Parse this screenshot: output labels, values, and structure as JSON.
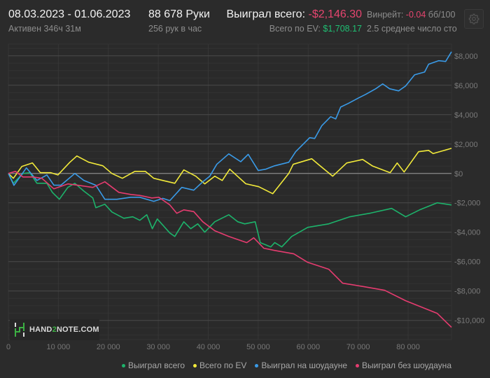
{
  "header": {
    "date_range": "08.03.2023 - 01.06.2023",
    "active_time": "Активен 346ч 31м",
    "hands": "88 678 Руки",
    "hands_per_hour": "256 рук в час",
    "won_total_label": "Выиграл всего:",
    "won_total_value": "-$2,146.30",
    "ev_total_label": "Всего по EV:",
    "ev_total_value": "$1,708.17",
    "winrate_label": "Винрейт:",
    "winrate_value": "-0.04",
    "winrate_unit": "бб/100",
    "avg_tables": "2.5 среднее число сто",
    "settings_icon": "gear-icon"
  },
  "logo": {
    "text_a": "HAND",
    "text_b": "2",
    "text_c": "NOTE.COM"
  },
  "chart_data": {
    "type": "line",
    "xlim": [
      0,
      88678
    ],
    "ylim": [
      -11300,
      8800
    ],
    "x_ticks": [
      0,
      10000,
      20000,
      30000,
      40000,
      50000,
      60000,
      70000,
      80000
    ],
    "x_tick_labels": [
      "0",
      "10 000",
      "20 000",
      "30 000",
      "40 000",
      "50 000",
      "60 000",
      "70 000",
      "80 000"
    ],
    "y_ticks": [
      8000,
      6000,
      4000,
      2000,
      0,
      -2000,
      -4000,
      -6000,
      -8000,
      -10000
    ],
    "y_tick_labels": [
      "$8,000",
      "$6,000",
      "$4,000",
      "$2,000",
      "$0",
      "-$2,000",
      "-$4,000",
      "-$6,000",
      "-$8,000",
      "-$10,000"
    ],
    "grid": true,
    "legend_position": "bottom-right",
    "series": [
      {
        "name": "Выиграл всего",
        "color": "#1db36b",
        "points": [
          [
            0,
            0
          ],
          [
            1000,
            -670
          ],
          [
            2900,
            0
          ],
          [
            4300,
            50
          ],
          [
            5700,
            -670
          ],
          [
            7700,
            -670
          ],
          [
            8800,
            -1290
          ],
          [
            10200,
            -1760
          ],
          [
            11900,
            -950
          ],
          [
            13300,
            -670
          ],
          [
            15100,
            -1200
          ],
          [
            16900,
            -1670
          ],
          [
            17500,
            -2330
          ],
          [
            19300,
            -2100
          ],
          [
            20700,
            -2620
          ],
          [
            23100,
            -3050
          ],
          [
            24900,
            -2950
          ],
          [
            26300,
            -3190
          ],
          [
            27700,
            -2810
          ],
          [
            28800,
            -3760
          ],
          [
            29800,
            -3100
          ],
          [
            32300,
            -4050
          ],
          [
            33300,
            -4290
          ],
          [
            35100,
            -3290
          ],
          [
            36500,
            -3760
          ],
          [
            37900,
            -3430
          ],
          [
            39300,
            -4000
          ],
          [
            41300,
            -3290
          ],
          [
            44100,
            -2810
          ],
          [
            45900,
            -3290
          ],
          [
            47300,
            -3430
          ],
          [
            49400,
            -3290
          ],
          [
            50400,
            -4710
          ],
          [
            52500,
            -5000
          ],
          [
            53300,
            -4710
          ],
          [
            54700,
            -5000
          ],
          [
            56700,
            -4290
          ],
          [
            59900,
            -3670
          ],
          [
            64100,
            -3430
          ],
          [
            68300,
            -2950
          ],
          [
            72500,
            -2700
          ],
          [
            76700,
            -2380
          ],
          [
            79500,
            -2950
          ],
          [
            82300,
            -2480
          ],
          [
            85800,
            -2000
          ],
          [
            88678,
            -2146.3
          ]
        ]
      },
      {
        "name": "Всего по EV",
        "color": "#f2ea3a",
        "points": [
          [
            0,
            0
          ],
          [
            1000,
            -330
          ],
          [
            2700,
            480
          ],
          [
            4800,
            710
          ],
          [
            6400,
            50
          ],
          [
            8500,
            50
          ],
          [
            9900,
            -100
          ],
          [
            12300,
            760
          ],
          [
            13700,
            1190
          ],
          [
            16100,
            760
          ],
          [
            18900,
            520
          ],
          [
            20700,
            0
          ],
          [
            22800,
            -330
          ],
          [
            25300,
            140
          ],
          [
            27400,
            140
          ],
          [
            29100,
            -330
          ],
          [
            30900,
            -480
          ],
          [
            33300,
            -670
          ],
          [
            35100,
            240
          ],
          [
            37500,
            -190
          ],
          [
            39300,
            -710
          ],
          [
            41300,
            -190
          ],
          [
            42800,
            -480
          ],
          [
            44300,
            290
          ],
          [
            47500,
            -700
          ],
          [
            50100,
            -900
          ],
          [
            52900,
            -1380
          ],
          [
            56100,
            0
          ],
          [
            57000,
            620
          ],
          [
            60700,
            1000
          ],
          [
            62100,
            600
          ],
          [
            64900,
            -190
          ],
          [
            67700,
            710
          ],
          [
            70900,
            950
          ],
          [
            72900,
            500
          ],
          [
            76400,
            50
          ],
          [
            77800,
            710
          ],
          [
            79200,
            100
          ],
          [
            82100,
            1480
          ],
          [
            84100,
            1570
          ],
          [
            85000,
            1350
          ],
          [
            88678,
            1708.17
          ]
        ]
      },
      {
        "name": "Выиграл на шоудауне",
        "color": "#3a9be8",
        "points": [
          [
            0,
            0
          ],
          [
            1100,
            -810
          ],
          [
            3600,
            380
          ],
          [
            5700,
            -480
          ],
          [
            7700,
            -100
          ],
          [
            9100,
            -800
          ],
          [
            10500,
            -800
          ],
          [
            13300,
            0
          ],
          [
            15100,
            -480
          ],
          [
            17500,
            -800
          ],
          [
            19300,
            -1760
          ],
          [
            21700,
            -1760
          ],
          [
            24500,
            -1620
          ],
          [
            26300,
            -1620
          ],
          [
            29100,
            -1900
          ],
          [
            30900,
            -1700
          ],
          [
            32300,
            -1850
          ],
          [
            34700,
            -950
          ],
          [
            37100,
            -1140
          ],
          [
            38900,
            -570
          ],
          [
            40300,
            -190
          ],
          [
            41700,
            620
          ],
          [
            44100,
            1330
          ],
          [
            46500,
            800
          ],
          [
            48000,
            1300
          ],
          [
            50000,
            200
          ],
          [
            51500,
            290
          ],
          [
            53300,
            520
          ],
          [
            56100,
            760
          ],
          [
            57500,
            1480
          ],
          [
            60300,
            2430
          ],
          [
            61300,
            2380
          ],
          [
            62700,
            3240
          ],
          [
            64500,
            3860
          ],
          [
            65500,
            3710
          ],
          [
            66500,
            4520
          ],
          [
            68000,
            4760
          ],
          [
            70100,
            5140
          ],
          [
            71500,
            5380
          ],
          [
            73500,
            5760
          ],
          [
            74900,
            6090
          ],
          [
            76300,
            5760
          ],
          [
            78100,
            5620
          ],
          [
            79500,
            5950
          ],
          [
            81300,
            6710
          ],
          [
            83300,
            6900
          ],
          [
            84100,
            7430
          ],
          [
            86100,
            7670
          ],
          [
            87500,
            7620
          ],
          [
            88678,
            8280
          ]
        ]
      },
      {
        "name": "Выиграл без шоудауна",
        "color": "#e63c70",
        "points": [
          [
            0,
            0
          ],
          [
            1400,
            140
          ],
          [
            2900,
            -240
          ],
          [
            4900,
            -240
          ],
          [
            6700,
            -330
          ],
          [
            9100,
            -1050
          ],
          [
            11900,
            -710
          ],
          [
            14100,
            -810
          ],
          [
            16900,
            -950
          ],
          [
            19300,
            -570
          ],
          [
            22100,
            -1290
          ],
          [
            24500,
            -1430
          ],
          [
            26300,
            -1500
          ],
          [
            28700,
            -1670
          ],
          [
            30100,
            -1620
          ],
          [
            32300,
            -2140
          ],
          [
            33700,
            -2710
          ],
          [
            35100,
            -2480
          ],
          [
            37100,
            -2600
          ],
          [
            38900,
            -3290
          ],
          [
            41300,
            -3900
          ],
          [
            44100,
            -4290
          ],
          [
            47700,
            -4710
          ],
          [
            49100,
            -4380
          ],
          [
            51100,
            -5090
          ],
          [
            53300,
            -5240
          ],
          [
            57100,
            -5470
          ],
          [
            59900,
            -6050
          ],
          [
            64100,
            -6520
          ],
          [
            66900,
            -7470
          ],
          [
            71100,
            -7700
          ],
          [
            75300,
            -7950
          ],
          [
            79500,
            -8660
          ],
          [
            82300,
            -9040
          ],
          [
            85800,
            -9520
          ],
          [
            88678,
            -10470
          ]
        ]
      }
    ]
  }
}
